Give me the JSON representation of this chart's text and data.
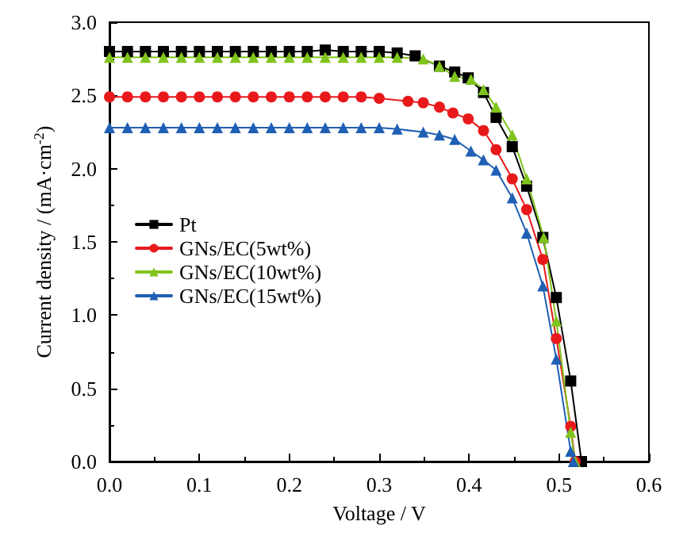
{
  "chart_data": {
    "type": "line",
    "xlabel": "Voltage / V",
    "ylabel": "Current density / (mA·cm$^{-2}$)",
    "xlim": [
      0,
      0.6
    ],
    "xticks": [
      {
        "value": 0,
        "label": "0.0"
      },
      0.1,
      0.2,
      0.3,
      0.4,
      0.5,
      0.6
    ],
    "ylim": [
      0,
      3
    ],
    "yticks": [
      {
        "value": 0,
        "label": "0.0"
      },
      0.5,
      {
        "value": 1,
        "label": "1.0"
      },
      1.5,
      {
        "value": 2,
        "label": "2.0"
      },
      2.5,
      {
        "value": 3,
        "label": "3.0"
      }
    ],
    "grid": false,
    "legend": "left",
    "line_style": "solid",
    "series": [
      {
        "name": "Pt",
        "color": "#000000",
        "marker": "square",
        "x": [
          0,
          0.02,
          0.04,
          0.06,
          0.08,
          0.1,
          0.12,
          0.14,
          0.16,
          0.18,
          0.2,
          0.22,
          0.24,
          0.26,
          0.28,
          0.3,
          0.32,
          0.34,
          0.367,
          0.384,
          0.399,
          0.416,
          0.43,
          0.448,
          0.464,
          0.482,
          0.497,
          0.513,
          0.525
        ],
        "values": [
          2.8,
          2.8,
          2.8,
          2.8,
          2.8,
          2.8,
          2.8,
          2.8,
          2.8,
          2.8,
          2.8,
          2.8,
          2.81,
          2.8,
          2.8,
          2.8,
          2.79,
          2.77,
          2.7,
          2.66,
          2.62,
          2.52,
          2.35,
          2.15,
          1.88,
          1.53,
          1.12,
          0.55,
          0
        ]
      },
      {
        "name": "GNs/EC(5wt%)",
        "color": "#e8191b",
        "marker": "circle",
        "x": [
          0,
          0.02,
          0.04,
          0.06,
          0.08,
          0.1,
          0.12,
          0.14,
          0.16,
          0.18,
          0.2,
          0.22,
          0.24,
          0.26,
          0.28,
          0.3,
          0.332,
          0.349,
          0.367,
          0.382,
          0.399,
          0.416,
          0.43,
          0.448,
          0.464,
          0.482,
          0.497,
          0.513,
          0.518
        ],
        "values": [
          2.49,
          2.49,
          2.49,
          2.49,
          2.49,
          2.49,
          2.49,
          2.49,
          2.49,
          2.49,
          2.49,
          2.49,
          2.49,
          2.49,
          2.49,
          2.48,
          2.46,
          2.45,
          2.42,
          2.38,
          2.34,
          2.26,
          2.13,
          1.93,
          1.72,
          1.38,
          0.84,
          0.24,
          0
        ]
      },
      {
        "name": "GNs/EC(10wt%)",
        "color": "#7fc41c",
        "marker": "triangle",
        "x": [
          0,
          0.02,
          0.04,
          0.06,
          0.08,
          0.1,
          0.12,
          0.14,
          0.16,
          0.18,
          0.2,
          0.22,
          0.24,
          0.26,
          0.28,
          0.3,
          0.32,
          0.349,
          0.367,
          0.384,
          0.402,
          0.416,
          0.43,
          0.448,
          0.464,
          0.483,
          0.497,
          0.513,
          0.518
        ],
        "values": [
          2.76,
          2.76,
          2.76,
          2.76,
          2.76,
          2.76,
          2.76,
          2.76,
          2.76,
          2.76,
          2.76,
          2.76,
          2.76,
          2.76,
          2.76,
          2.76,
          2.76,
          2.75,
          2.7,
          2.63,
          2.61,
          2.54,
          2.42,
          2.23,
          1.93,
          1.53,
          0.96,
          0.2,
          0
        ]
      },
      {
        "name": "GNs/EC(15wt%)",
        "color": "#1f5fb4",
        "marker": "triangle",
        "x": [
          0,
          0.02,
          0.04,
          0.06,
          0.08,
          0.1,
          0.12,
          0.14,
          0.16,
          0.18,
          0.2,
          0.22,
          0.24,
          0.26,
          0.28,
          0.3,
          0.32,
          0.349,
          0.367,
          0.384,
          0.402,
          0.416,
          0.43,
          0.448,
          0.464,
          0.482,
          0.497,
          0.513,
          0.516
        ],
        "values": [
          2.28,
          2.28,
          2.28,
          2.28,
          2.28,
          2.28,
          2.28,
          2.28,
          2.28,
          2.28,
          2.28,
          2.28,
          2.28,
          2.28,
          2.28,
          2.28,
          2.27,
          2.25,
          2.23,
          2.2,
          2.12,
          2.06,
          1.99,
          1.8,
          1.56,
          1.2,
          0.7,
          0.07,
          0
        ]
      }
    ]
  }
}
